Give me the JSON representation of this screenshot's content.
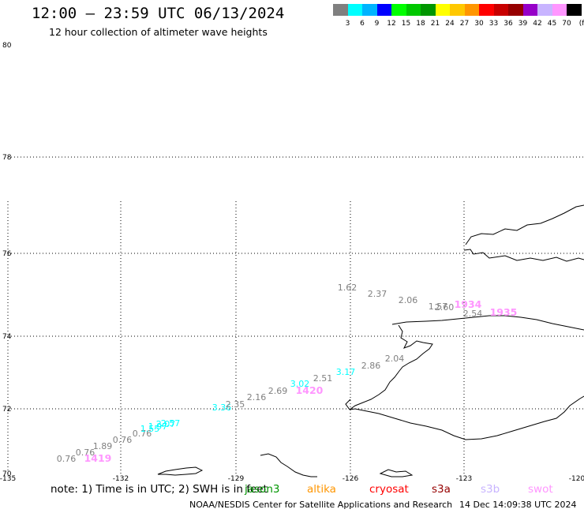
{
  "header": {
    "title": "12:00 — 23:59 UTC 06/13/2024",
    "subtitle": "12 hour collection of altimeter wave heights"
  },
  "color_scale": {
    "unit": "(ft)",
    "swatches": [
      "#808080",
      "#00ffff",
      "#00b4ff",
      "#0000ff",
      "#00ff00",
      "#00c800",
      "#009600",
      "#ffff00",
      "#ffc800",
      "#ff9600",
      "#ff0000",
      "#c80000",
      "#960000",
      "#9600c8",
      "#c8b4ff",
      "#ff96ff",
      "#000000"
    ],
    "labels": [
      "3",
      "6",
      "9",
      "12",
      "15",
      "18",
      "21",
      "24",
      "27",
      "30",
      "33",
      "36",
      "39",
      "42",
      "45",
      "70"
    ]
  },
  "axes": {
    "lat_labels": [
      "80",
      "78",
      "76",
      "74",
      "72",
      "70"
    ],
    "lon_labels": [
      "-135",
      "-132",
      "-129",
      "-126",
      "-123",
      "-120"
    ]
  },
  "chart_data": {
    "type": "scatter",
    "points": [
      {
        "label": "0.76",
        "color": "#808080"
      },
      {
        "label": "0.76",
        "color": "#808080"
      },
      {
        "label": "1419",
        "color": "#ff96ff"
      },
      {
        "label": "1.89",
        "color": "#808080"
      },
      {
        "label": "0.76",
        "color": "#808080"
      },
      {
        "label": "0.76",
        "color": "#808080"
      },
      {
        "label": "1.55",
        "color": "#00ffff"
      },
      {
        "label": "1.97",
        "color": "#00ffff"
      },
      {
        "label": "2.07",
        "color": "#00ffff"
      },
      {
        "label": "2.57",
        "color": "#00ffff"
      },
      {
        "label": "3.36",
        "color": "#00ffff"
      },
      {
        "label": "2.35",
        "color": "#808080"
      },
      {
        "label": "2.16",
        "color": "#808080"
      },
      {
        "label": "2.69",
        "color": "#808080"
      },
      {
        "label": "3.02",
        "color": "#00ffff"
      },
      {
        "label": "1420",
        "color": "#ff96ff"
      },
      {
        "label": "2.51",
        "color": "#808080"
      },
      {
        "label": "3.17",
        "color": "#00ffff"
      },
      {
        "label": "2.86",
        "color": "#808080"
      },
      {
        "label": "2.04",
        "color": "#808080"
      },
      {
        "label": "1.62",
        "color": "#808080"
      },
      {
        "label": "2.37",
        "color": "#808080"
      },
      {
        "label": "2.06",
        "color": "#808080"
      },
      {
        "label": "1.57",
        "color": "#808080"
      },
      {
        "label": "2.60",
        "color": "#808080"
      },
      {
        "label": "1934",
        "color": "#ff96ff"
      },
      {
        "label": "2.54",
        "color": "#808080"
      },
      {
        "label": "1935",
        "color": "#ff96ff"
      }
    ]
  },
  "note": "note: 1) Time is in UTC; 2) SWH is in feet",
  "legend": [
    {
      "name": "jason3",
      "color": "#009600"
    },
    {
      "name": "altika",
      "color": "#ff9600"
    },
    {
      "name": "cryosat",
      "color": "#ff0000"
    },
    {
      "name": "s3a",
      "color": "#960000"
    },
    {
      "name": "s3b",
      "color": "#c8b4ff"
    },
    {
      "name": "swot",
      "color": "#ff96ff"
    }
  ],
  "footer": {
    "credit": "NOAA/NESDIS Center for Satellite Applications and Research",
    "date": "14 Dec 14:09:38 UTC 2024"
  }
}
